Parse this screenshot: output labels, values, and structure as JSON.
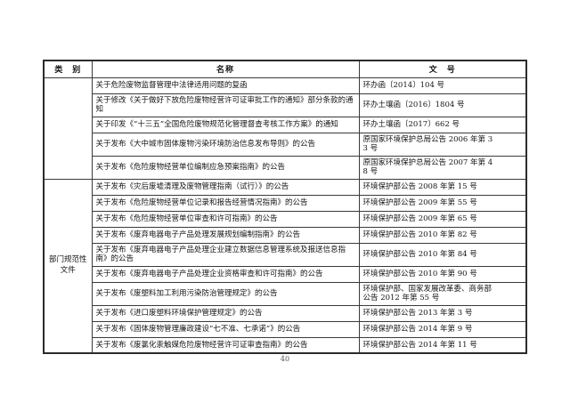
{
  "page": {
    "number": "40"
  },
  "table": {
    "headers": [
      "类　别",
      "名称",
      "文　号"
    ],
    "groups": [
      {
        "category": "",
        "rows": [
          {
            "name": "关于危险废物监督管理中法律适用问题的复函",
            "doc_no": "环办函〔2014〕104 号"
          },
          {
            "name": "关于修改《关于做好下放危险废物经营许可证审批工作的通知》部分条款的通知",
            "doc_no": "环办土壤函〔2016〕1804 号"
          },
          {
            "name": "关于印发《“十三五”全国危险废物规范化管理督查考核工作方案》的通知",
            "doc_no": "环办土壤函〔2017〕662 号"
          },
          {
            "name": "关于发布《大中城市固体废物污染环境防治信息发布导则》的公告",
            "doc_no": "原国家环境保护总局公告 2006 年第 33 号"
          },
          {
            "name": "关于发布《危险废物经营单位编制应急预案指南》的公告",
            "doc_no": "原国家环境保护总局公告 2007 年第 48 号"
          }
        ]
      },
      {
        "category": "部门规范性文件",
        "rows": [
          {
            "name": "关于发布《灾后废墟清理及废物管理指南（试行）》的公告",
            "doc_no": "环境保护部公告 2008 年第 15 号"
          },
          {
            "name": "关于发布《危险废物经营单位记录和报告经营情况指南》的公告",
            "doc_no": "环境保护部公告 2009 年第 55 号"
          },
          {
            "name": "关于发布《危险废物经营单位审查和许可指南》的公告",
            "doc_no": "环境保护部公告 2009 年第 65 号"
          },
          {
            "name": "关于发布《废弃电器电子产品处理发展规划编制指南》的公告",
            "doc_no": "环境保护部公告 2010 年第 82 号"
          },
          {
            "name": "关于发布《废弃电器电子产品处理企业建立数据信息管理系统及报送信息指南》的公告",
            "doc_no": "环境保护部公告 2010 年第 84 号"
          },
          {
            "name": "关于发布《废弃电器电子产品处理企业资格审查和许可指南》的公告",
            "doc_no": "环境保护部公告 2010 年第 90 号"
          },
          {
            "name": "关于发布《废塑料加工利用污染防治管理规定》的公告",
            "doc_no": "环境保护部、国家发展改革委、商务部公告 2012 年第 55 号"
          },
          {
            "name": "关于发布《进口废塑料环境保护管理规定》的公告",
            "doc_no": "环境保护部公告 2013 年第 3 号"
          },
          {
            "name": "关于发布《固体废物管理廉政建设“七不准、七承诺”》的公告",
            "doc_no": "环境保护部公告 2014 年第 9 号"
          },
          {
            "name": "关于发布《废氯化汞触媒危险废物经营许可证审查指南》的公告",
            "doc_no": "环境保护部公告 2014 年第 11 号"
          }
        ]
      }
    ]
  }
}
